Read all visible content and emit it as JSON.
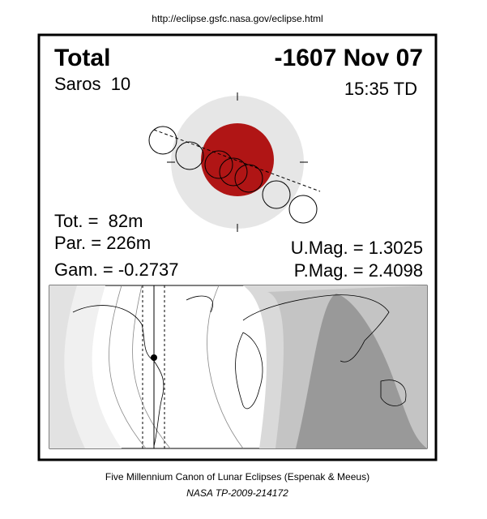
{
  "url": "http://eclipse.gsfc.nasa.gov/eclipse.html",
  "header": {
    "type": "Total",
    "date": "-1607 Nov 07",
    "saros": "Saros  10",
    "time": "15:35 TD"
  },
  "stats": {
    "tot": "Tot. =  82m",
    "par": "Par. = 226m",
    "gam": "Gam. = -0.2737",
    "umag": "U.Mag. = 1.3025",
    "pmag": "P.Mag. = 2.4098"
  },
  "footer": {
    "canon": "Five Millennium Canon of Lunar Eclipses (Espenak & Meeus)",
    "ref": "NASA TP-2009-214172"
  }
}
